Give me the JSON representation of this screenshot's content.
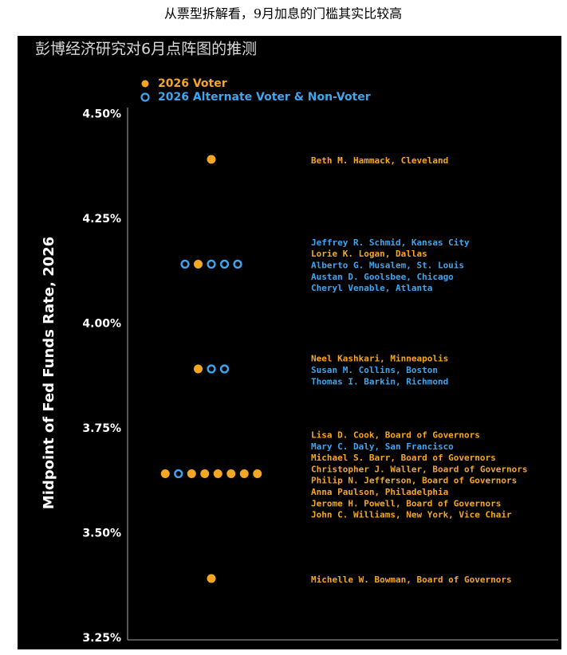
{
  "caption": "从票型拆解看，9月加息的门槛其实比较高",
  "chart_data": {
    "type": "dot",
    "title": "彭博经济研究对6月点阵图的推测",
    "y_label": "Midpoint of Fed Funds Rate, 2026",
    "ylim": [
      3.25,
      4.5
    ],
    "yticks": [
      {
        "value": 4.5,
        "label": "4.50%"
      },
      {
        "value": 4.25,
        "label": "4.25%"
      },
      {
        "value": 4.0,
        "label": "4.00%"
      },
      {
        "value": 3.75,
        "label": "3.75%"
      },
      {
        "value": 3.5,
        "label": "3.50%"
      },
      {
        "value": 3.25,
        "label": "3.25%"
      }
    ],
    "labels": [
      "Beth M. Hammack, Cleveland",
      "Jeffrey R. Schmid, Kansas City",
      "Lorie K. Logan, Dallas",
      "Alberto G. Musalem, St. Louis",
      "Austan D. Goolsbee, Chicago",
      "Cheryl Venable, Atlanta",
      "Neel Kashkari, Minneapolis",
      "Susan M. Collins, Boston",
      "Thomas I. Barkin, Richmond",
      "Lisa D. Cook, Board of Governors",
      "Mary C. Daly, San Francisco",
      "Michael S. Barr, Board of Governors",
      "Christopher J. Waller, Board of Governors",
      "Philip N. Jefferson, Board of Governors",
      "Anna Paulson, Philadelphia",
      "Jerome H. Powell, Board of Governors",
      "John C. Williams, New York, Vice Chair",
      "Michelle W. Bowman, Board of Governors"
    ],
    "series": [
      {
        "name": "2026 Voter",
        "color": "#f5a623",
        "filled": true,
        "values": [
          4.375,
          null,
          4.125,
          null,
          null,
          null,
          3.875,
          null,
          null,
          3.625,
          null,
          3.625,
          3.625,
          3.625,
          3.625,
          3.625,
          3.625,
          3.375
        ]
      },
      {
        "name": "2026 Alternate Voter & Non-Voter",
        "color": "#3ea6f0",
        "filled": false,
        "values": [
          null,
          4.125,
          null,
          4.125,
          4.125,
          4.125,
          null,
          3.875,
          3.875,
          null,
          3.625,
          null,
          null,
          null,
          null,
          null,
          null,
          null
        ]
      }
    ]
  }
}
